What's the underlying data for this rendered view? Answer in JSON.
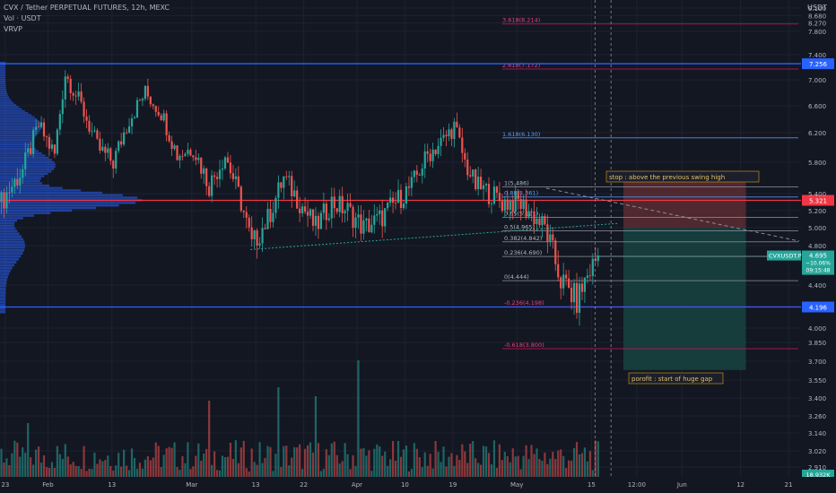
{
  "header": {
    "title": "CVX / Tether PERPETUAL FUTURES, 12h, MEXC",
    "vol": "Vol · USDT",
    "indicator": "VRVP"
  },
  "axis": {
    "unit": "USDT"
  },
  "colors": {
    "background": "#131722",
    "up": "#26a69a",
    "down": "#ef5350",
    "fib": "#5b9cf6",
    "fibGrey": "#b2b5be",
    "resistance": "#f23645",
    "support": "#2962ff",
    "profile": "#2962ff",
    "stopZone": "#5c2b33",
    "targetZone": "#17403f"
  },
  "chart_data": {
    "type": "candlestick",
    "ylim": [
      2.88,
      9.25
    ],
    "y_ticks": [
      {
        "label": "9.100",
        "v": 9.1
      },
      {
        "label": "8.680",
        "v": 8.68
      },
      {
        "label": "8.270",
        "v": 8.27
      },
      {
        "label": "7.800",
        "v": 7.8
      },
      {
        "label": "7.400",
        "v": 7.4
      },
      {
        "label": "7.000",
        "v": 7.0
      },
      {
        "label": "6.600",
        "v": 6.6
      },
      {
        "label": "6.200",
        "v": 6.2
      },
      {
        "label": "5.800",
        "v": 5.8
      },
      {
        "label": "5.400",
        "v": 5.4
      },
      {
        "label": "5.200",
        "v": 5.2
      },
      {
        "label": "5.000",
        "v": 5.0
      },
      {
        "label": "4.800",
        "v": 4.8
      },
      {
        "label": "4.400",
        "v": 4.4
      },
      {
        "label": "4.000",
        "v": 4.0
      },
      {
        "label": "3.850",
        "v": 3.85
      },
      {
        "label": "3.700",
        "v": 3.7
      },
      {
        "label": "3.550",
        "v": 3.55
      },
      {
        "label": "3.400",
        "v": 3.4
      },
      {
        "label": "3.260",
        "v": 3.26
      },
      {
        "label": "3.140",
        "v": 3.14
      },
      {
        "label": "3.020",
        "v": 3.02
      },
      {
        "label": "2.910",
        "v": 2.91
      }
    ],
    "x_ticks": [
      {
        "label": "23",
        "i": 2
      },
      {
        "label": "Feb",
        "i": 18
      },
      {
        "label": "13",
        "i": 42
      },
      {
        "label": "Mar",
        "i": 72
      },
      {
        "label": "13",
        "i": 96
      },
      {
        "label": "22",
        "i": 114
      },
      {
        "label": "Apr",
        "i": 134
      },
      {
        "label": "10",
        "i": 152
      },
      {
        "label": "19",
        "i": 170
      },
      {
        "label": "May",
        "i": 194
      },
      {
        "label": "15",
        "i": 222
      },
      {
        "label": "12:00",
        "i": 239
      },
      {
        "label": "Jun",
        "i": 256
      },
      {
        "label": "12",
        "i": 278
      },
      {
        "label": "21",
        "i": 296
      }
    ],
    "n_slots": 310,
    "price_path": [
      [
        0,
        5.3
      ],
      [
        8,
        5.7
      ],
      [
        14,
        6.3
      ],
      [
        20,
        5.9
      ],
      [
        24,
        7.1
      ],
      [
        30,
        6.6
      ],
      [
        36,
        6.0
      ],
      [
        42,
        5.8
      ],
      [
        48,
        6.4
      ],
      [
        54,
        6.8
      ],
      [
        60,
        6.5
      ],
      [
        66,
        5.9
      ],
      [
        72,
        6.0
      ],
      [
        78,
        5.5
      ],
      [
        84,
        5.9
      ],
      [
        90,
        5.3
      ],
      [
        94,
        4.8
      ],
      [
        100,
        5.1
      ],
      [
        106,
        5.6
      ],
      [
        112,
        5.3
      ],
      [
        118,
        5.0
      ],
      [
        124,
        5.3
      ],
      [
        130,
        5.2
      ],
      [
        136,
        5.0
      ],
      [
        142,
        5.1
      ],
      [
        148,
        5.3
      ],
      [
        154,
        5.5
      ],
      [
        160,
        5.9
      ],
      [
        166,
        6.1
      ],
      [
        170,
        6.3
      ],
      [
        174,
        5.8
      ],
      [
        178,
        5.5
      ],
      [
        184,
        5.4
      ],
      [
        188,
        5.3
      ],
      [
        194,
        5.3
      ],
      [
        198,
        5.2
      ],
      [
        204,
        5.0
      ],
      [
        210,
        4.45
      ],
      [
        216,
        4.25
      ],
      [
        220,
        4.5
      ],
      [
        224,
        4.7
      ]
    ],
    "last_price": {
      "label": "CVXUSDT.P",
      "value": "4.695",
      "change": "−10.06%",
      "timer": "09:15:48",
      "v": 4.695
    },
    "fibonacci": [
      {
        "label": "3.618(8.214)",
        "v": 8.214
      },
      {
        "label": "2.618(7.172)",
        "v": 7.172
      },
      {
        "label": "1.618(6.130)",
        "v": 6.13
      },
      {
        "label": "1(5.486)",
        "v": 5.486
      },
      {
        "label": "0.88(5.361)",
        "v": 5.361
      },
      {
        "label": "0.65(5.121)",
        "v": 5.121
      },
      {
        "label": "0.5(4.965)",
        "v": 4.965
      },
      {
        "label": "0.382(4.842)",
        "v": 4.842
      },
      {
        "label": "0.236(4.690)",
        "v": 4.69
      },
      {
        "label": "0(4.444)",
        "v": 4.444
      },
      {
        "label": "-0.236(4.198)",
        "v": 4.198
      },
      {
        "label": "-0.618(3.800)",
        "v": 3.8
      }
    ],
    "levels": [
      {
        "label": "7.256",
        "v": 7.256,
        "kind": "support"
      },
      {
        "label": "5.321",
        "v": 5.321,
        "kind": "resistance"
      },
      {
        "label": "4.196",
        "v": 4.196,
        "kind": "support"
      }
    ],
    "annotations": {
      "stop": "stop : above the previous swing high",
      "profit": "porofit : start of huge gap"
    },
    "volume_badge": "18.932K",
    "trade": {
      "entry": 5.0,
      "stop": 5.55,
      "target": 3.63,
      "start_i": 234,
      "end_i": 280
    }
  }
}
